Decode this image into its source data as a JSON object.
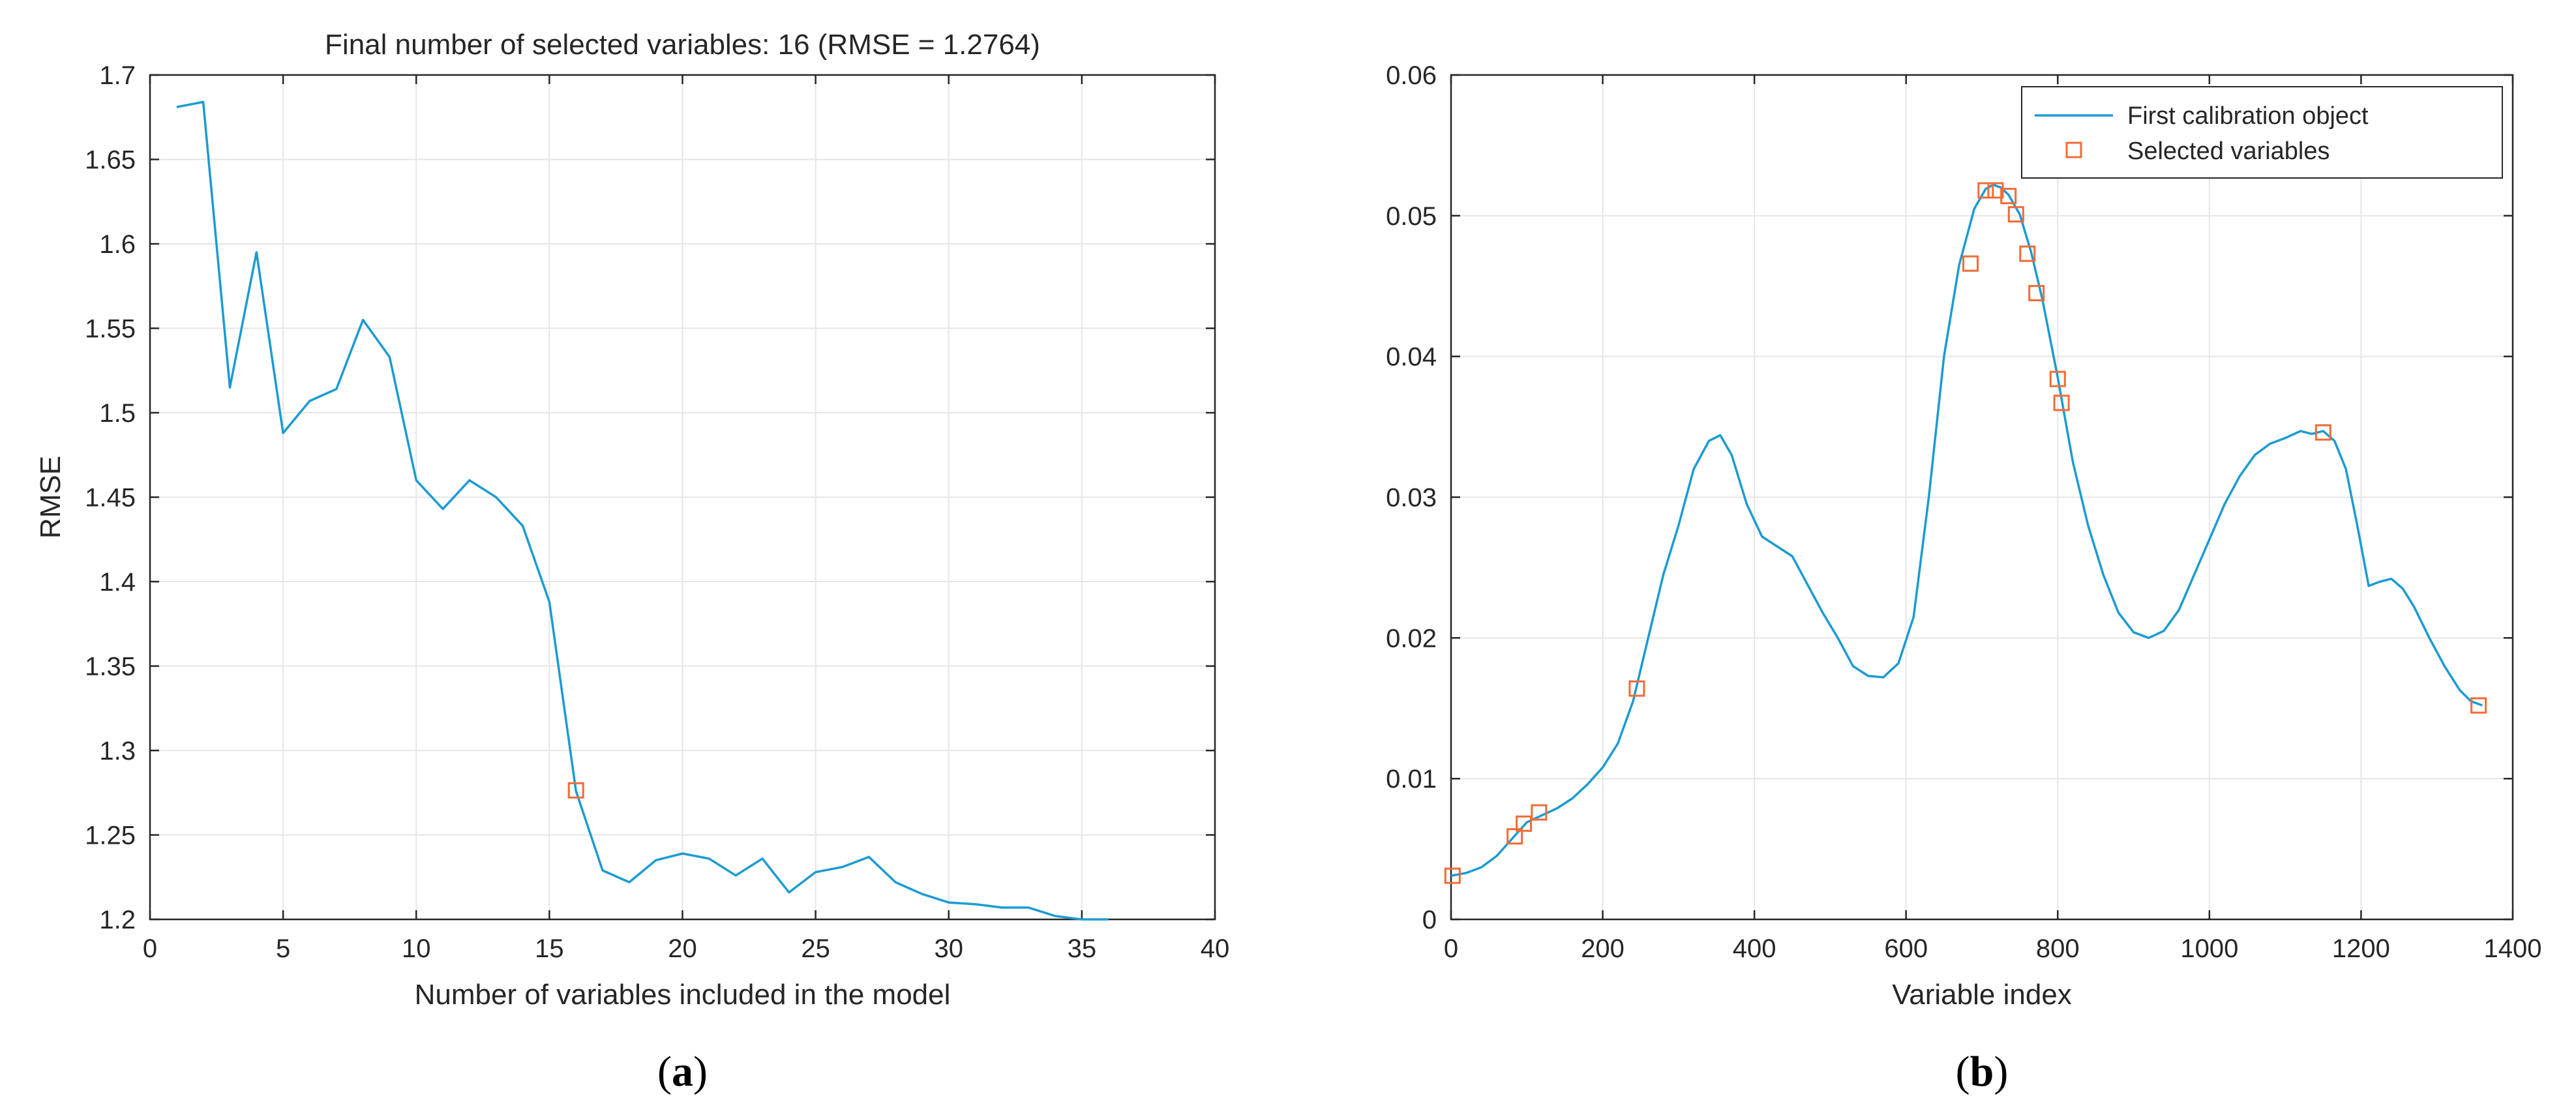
{
  "colors": {
    "line": "#1B9BD2",
    "marker": "#F26B35",
    "grid": "#E6E6E6",
    "axis": "#262626"
  },
  "captions": {
    "a_open": "(",
    "a_letter": "a",
    "a_close": ")",
    "b_open": "(",
    "b_letter": "b",
    "b_close": ")"
  },
  "chart_data": [
    {
      "type": "line",
      "title": "Final number of selected variables: 16  (RMSE = 1.2764)",
      "xlabel": "Number of variables included in the model",
      "ylabel": "RMSE",
      "xlim": [
        0,
        40
      ],
      "ylim": [
        1.2,
        1.7
      ],
      "xticks": [
        0,
        5,
        10,
        15,
        20,
        25,
        30,
        35,
        40
      ],
      "yticks": [
        1.2,
        1.25,
        1.3,
        1.35,
        1.4,
        1.45,
        1.5,
        1.55,
        1.6,
        1.65,
        1.7
      ],
      "grid": true,
      "series": [
        {
          "kind": "line",
          "x": [
            1,
            2,
            3,
            4,
            5,
            6,
            7,
            8,
            9,
            10,
            11,
            12,
            13,
            14,
            15,
            16,
            17,
            18,
            19,
            20,
            21,
            22,
            23,
            24,
            25,
            26,
            27,
            28,
            29,
            30,
            31,
            32,
            33,
            34,
            35,
            36
          ],
          "values": [
            1.681,
            1.684,
            1.515,
            1.595,
            1.488,
            1.507,
            1.514,
            1.555,
            1.533,
            1.46,
            1.443,
            1.46,
            1.45,
            1.433,
            1.388,
            1.276,
            1.229,
            1.222,
            1.235,
            1.239,
            1.236,
            1.226,
            1.236,
            1.216,
            1.228,
            1.231,
            1.237,
            1.222,
            1.215,
            1.21,
            1.209,
            1.207,
            1.207,
            1.202,
            1.2,
            1.2
          ]
        },
        {
          "kind": "marker",
          "x": [
            16
          ],
          "values": [
            1.2764
          ]
        }
      ]
    },
    {
      "type": "line",
      "title": "",
      "xlabel": "Variable index",
      "ylabel": "",
      "xlim": [
        0,
        1400
      ],
      "ylim": [
        0,
        0.06
      ],
      "xticks": [
        0,
        200,
        400,
        600,
        800,
        1000,
        1200,
        1400
      ],
      "yticks": [
        0,
        0.01,
        0.02,
        0.03,
        0.04,
        0.05,
        0.06
      ],
      "grid": true,
      "legend_position": "top-right",
      "series": [
        {
          "name": "First calibration object",
          "kind": "line",
          "x": [
            0,
            20,
            40,
            60,
            80,
            100,
            120,
            140,
            160,
            180,
            200,
            220,
            240,
            260,
            280,
            300,
            320,
            340,
            355,
            370,
            390,
            410,
            430,
            450,
            470,
            490,
            510,
            530,
            550,
            570,
            590,
            610,
            630,
            650,
            670,
            690,
            705,
            715,
            725,
            735,
            750,
            765,
            780,
            800,
            820,
            840,
            860,
            880,
            900,
            920,
            940,
            960,
            980,
            1000,
            1020,
            1040,
            1060,
            1080,
            1100,
            1120,
            1135,
            1150,
            1165,
            1180,
            1195,
            1210,
            1225,
            1240,
            1255,
            1270,
            1290,
            1310,
            1330,
            1345,
            1360
          ],
          "values": [
            0.0031,
            0.0033,
            0.0037,
            0.0045,
            0.0057,
            0.0069,
            0.0074,
            0.0079,
            0.0086,
            0.0096,
            0.0108,
            0.0125,
            0.0155,
            0.02,
            0.0245,
            0.028,
            0.032,
            0.034,
            0.0344,
            0.033,
            0.0295,
            0.0272,
            0.0265,
            0.0258,
            0.0238,
            0.0218,
            0.02,
            0.018,
            0.0173,
            0.0172,
            0.0182,
            0.0215,
            0.03,
            0.04,
            0.0465,
            0.0505,
            0.0519,
            0.0522,
            0.052,
            0.0515,
            0.0501,
            0.0474,
            0.044,
            0.0385,
            0.0325,
            0.028,
            0.0245,
            0.0218,
            0.0204,
            0.02,
            0.0205,
            0.022,
            0.0245,
            0.027,
            0.0295,
            0.0315,
            0.033,
            0.0338,
            0.0342,
            0.0347,
            0.0345,
            0.0347,
            0.034,
            0.032,
            0.028,
            0.0237,
            0.024,
            0.0242,
            0.0235,
            0.0222,
            0.02,
            0.018,
            0.0163,
            0.0155,
            0.0152
          ]
        },
        {
          "name": "Selected variables",
          "kind": "marker",
          "x": [
            2,
            84,
            96,
            116,
            245,
            685,
            705,
            718,
            735,
            745,
            760,
            772,
            800,
            805,
            1150,
            1355
          ],
          "values": [
            0.0031,
            0.0059,
            0.0068,
            0.0076,
            0.0164,
            0.0466,
            0.0518,
            0.0518,
            0.0514,
            0.0501,
            0.0473,
            0.0445,
            0.0384,
            0.0367,
            0.0346,
            0.0152
          ]
        }
      ]
    }
  ]
}
